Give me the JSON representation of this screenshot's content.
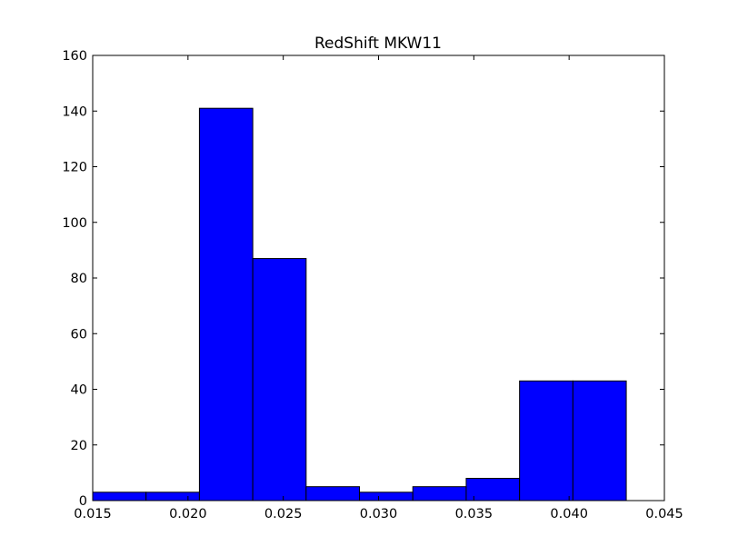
{
  "chart_data": {
    "type": "bar",
    "title": "RedShift MKW11",
    "xlabel": "",
    "ylabel": "",
    "xlim": [
      0.015,
      0.045
    ],
    "ylim": [
      0,
      160
    ],
    "xticks": [
      "0.015",
      "0.020",
      "0.025",
      "0.030",
      "0.035",
      "0.040",
      "0.045"
    ],
    "yticks": [
      "0",
      "20",
      "40",
      "60",
      "80",
      "100",
      "120",
      "140",
      "160"
    ],
    "bin_edges": [
      0.015,
      0.0178,
      0.0206,
      0.0234,
      0.0262,
      0.029,
      0.0318,
      0.0346,
      0.0374,
      0.0402,
      0.043
    ],
    "values": [
      3,
      3,
      141,
      87,
      5,
      3,
      5,
      8,
      43,
      43
    ],
    "grid": false,
    "bar_color": "#0000ff",
    "edge_color": "#000000"
  }
}
